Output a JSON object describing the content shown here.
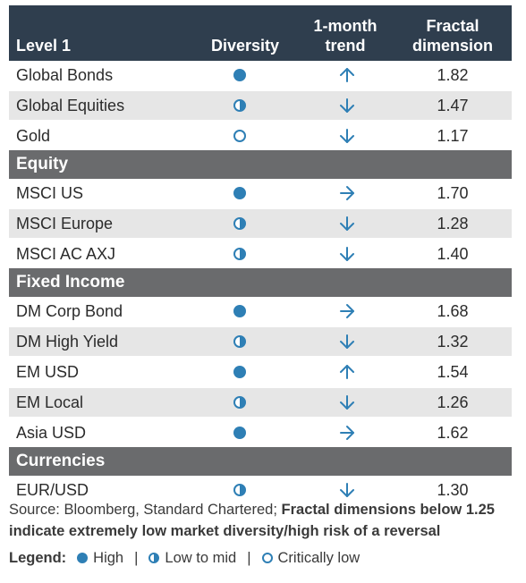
{
  "header": {
    "level": "Level 1",
    "diversity": "Diversity",
    "trend_line1": "1-month",
    "trend_line2": "trend",
    "fractal_line1": "Fractal",
    "fractal_line2": "dimension"
  },
  "rows_level1": [
    {
      "name": "Global Bonds",
      "diversity": "high",
      "trend": "up",
      "value": "1.82"
    },
    {
      "name": "Global Equities",
      "diversity": "mid",
      "trend": "down",
      "value": "1.47"
    },
    {
      "name": "Gold",
      "diversity": "low",
      "trend": "down",
      "value": "1.17"
    }
  ],
  "section_equity": "Equity",
  "rows_equity": [
    {
      "name": "MSCI US",
      "diversity": "high",
      "trend": "right",
      "value": "1.70"
    },
    {
      "name": "MSCI Europe",
      "diversity": "mid",
      "trend": "down",
      "value": "1.28"
    },
    {
      "name": "MSCI AC AXJ",
      "diversity": "mid",
      "trend": "down",
      "value": "1.40"
    }
  ],
  "section_fixed": "Fixed Income",
  "rows_fixed": [
    {
      "name": "DM Corp Bond",
      "diversity": "high",
      "trend": "right",
      "value": "1.68"
    },
    {
      "name": "DM High Yield",
      "diversity": "mid",
      "trend": "down",
      "value": "1.32"
    },
    {
      "name": "EM USD",
      "diversity": "high",
      "trend": "up",
      "value": "1.54"
    },
    {
      "name": "EM Local",
      "diversity": "mid",
      "trend": "down",
      "value": "1.26"
    },
    {
      "name": "Asia USD",
      "diversity": "high",
      "trend": "right",
      "value": "1.62"
    }
  ],
  "section_currencies": "Currencies",
  "rows_currencies": [
    {
      "name": "EUR/USD",
      "diversity": "mid",
      "trend": "down",
      "value": "1.30"
    }
  ],
  "source": {
    "plain": "Source: Bloomberg, Standard Chartered; ",
    "bold": "Fractal dimensions below 1.25 indicate extremely low market diversity/high risk of a reversal"
  },
  "legend": {
    "label": "Legend:",
    "high": "High",
    "mid": "Low to mid",
    "low": "Critically low",
    "sep": "|"
  },
  "colors": {
    "header_bg": "#2f3e4e",
    "section_bg": "#6a6b6d",
    "alt_row": "#e6e6e6",
    "accent": "#2e7fb5"
  }
}
